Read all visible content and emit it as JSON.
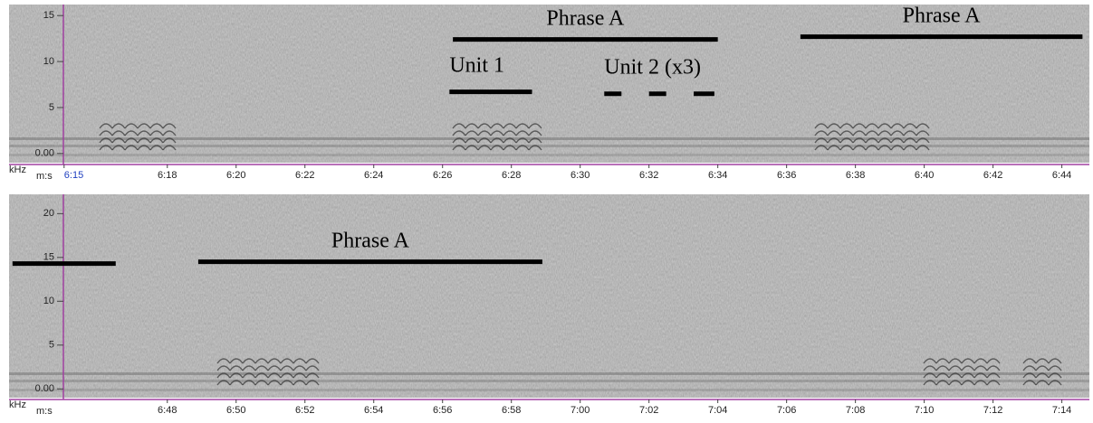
{
  "chart_data": [
    {
      "type": "spectrogram",
      "ylabel": "kHz",
      "xlabel": "m:s",
      "xlim": [
        373.4,
        404.8
      ],
      "ylim": [
        -1,
        16.2
      ],
      "yticks": [
        {
          "value": 0,
          "label": "0.00"
        },
        5,
        10,
        15
      ],
      "xticks": [
        {
          "value": 375,
          "label": "6:15"
        },
        {
          "value": 378,
          "label": "6:18"
        },
        {
          "value": 380,
          "label": "6:20"
        },
        {
          "value": 382,
          "label": "6:22"
        },
        {
          "value": 384,
          "label": "6:24"
        },
        {
          "value": 386,
          "label": "6:26"
        },
        {
          "value": 388,
          "label": "6:28"
        },
        {
          "value": 390,
          "label": "6:30"
        },
        {
          "value": 392,
          "label": "6:32"
        },
        {
          "value": 394,
          "label": "6:34"
        },
        {
          "value": 396,
          "label": "6:36"
        },
        {
          "value": 398,
          "label": "6:38"
        },
        {
          "value": 400,
          "label": "6:40"
        },
        {
          "value": 402,
          "label": "6:42"
        },
        {
          "value": 404,
          "label": "6:44"
        }
      ],
      "annotations": [
        {
          "text": "Phrase A",
          "segments": [
            [
              386.3,
              394.0
            ]
          ],
          "y": 12.4
        },
        {
          "text": "Phrase A",
          "segments": [
            [
              396.4,
              404.6
            ]
          ],
          "y": 12.7
        },
        {
          "text": "Unit 1",
          "segments": [
            [
              386.2,
              388.6
            ]
          ],
          "y": 6.7
        },
        {
          "text": "Unit 2 (x3)",
          "segments": [
            [
              390.7,
              391.2
            ],
            [
              392.0,
              392.5
            ],
            [
              393.3,
              393.9
            ]
          ],
          "y": 6.5
        }
      ]
    },
    {
      "type": "spectrogram",
      "ylabel": "kHz",
      "xlabel": "m:s",
      "xlim": [
        403.4,
        434.8
      ],
      "ylim": [
        -1,
        22.2
      ],
      "yticks": [
        {
          "value": 0,
          "label": "0.00"
        },
        5,
        10,
        15,
        20
      ],
      "xticks": [
        {
          "value": 408,
          "label": "6:48"
        },
        {
          "value": 410,
          "label": "6:50"
        },
        {
          "value": 412,
          "label": "6:52"
        },
        {
          "value": 414,
          "label": "6:54"
        },
        {
          "value": 416,
          "label": "6:56"
        },
        {
          "value": 418,
          "label": "6:58"
        },
        {
          "value": 420,
          "label": "7:00"
        },
        {
          "value": 422,
          "label": "7:02"
        },
        {
          "value": 424,
          "label": "7:04"
        },
        {
          "value": 426,
          "label": "7:06"
        },
        {
          "value": 428,
          "label": "7:08"
        },
        {
          "value": 430,
          "label": "7:10"
        },
        {
          "value": 432,
          "label": "7:12"
        },
        {
          "value": 434,
          "label": "7:14"
        }
      ],
      "annotations": [
        {
          "segments": [
            [
              403.5,
              406.5
            ]
          ],
          "y": 14.3
        },
        {
          "text": "Phrase A",
          "segments": [
            [
              408.9,
              418.9
            ]
          ],
          "y": 14.5
        }
      ]
    }
  ]
}
